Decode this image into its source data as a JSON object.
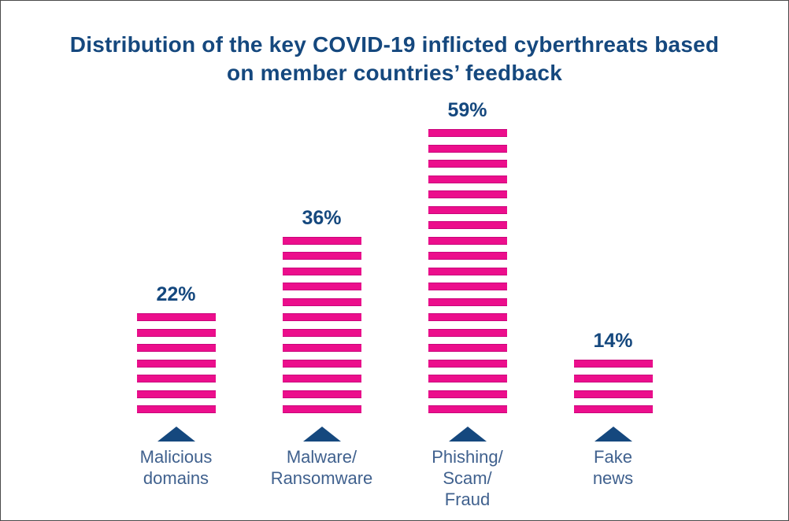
{
  "title": {
    "line1": "Distribution of the key COVID-19 inflicted cyberthreats based",
    "line2": "on member countries’ feedback"
  },
  "colors": {
    "stripe": "#EC0E8C",
    "stripe_edge": "#C9047B",
    "navy": "#15487E",
    "label_blue": "#40618E",
    "frame_border": "#4a4a4a",
    "background": "#ffffff"
  },
  "bars": [
    {
      "value_label": "22%",
      "percent": 22,
      "stripes": 7,
      "label_lines": [
        "Malicious",
        "domains"
      ]
    },
    {
      "value_label": "36%",
      "percent": 36,
      "stripes": 12,
      "label_lines": [
        "Malware/",
        "Ransomware"
      ]
    },
    {
      "value_label": "59%",
      "percent": 59,
      "stripes": 19,
      "label_lines": [
        "Phishing/",
        "Scam/",
        "Fraud"
      ]
    },
    {
      "value_label": "14%",
      "percent": 14,
      "stripes": 4,
      "label_lines": [
        "Fake",
        "news"
      ]
    }
  ],
  "chart_data": {
    "type": "bar",
    "categories": [
      "Malicious domains",
      "Malware/Ransomware",
      "Phishing/Scam/Fraud",
      "Fake news"
    ],
    "values": [
      22,
      36,
      59,
      14
    ],
    "unit": "%",
    "data_labels": [
      "22%",
      "36%",
      "59%",
      "14%"
    ],
    "title": "Distribution of the key COVID-19 inflicted cyberthreats based on member countries’ feedback",
    "xlabel": "",
    "ylabel": "",
    "ylim": [
      0,
      60
    ],
    "legend": false,
    "grid": false,
    "axes_visible": false,
    "bar_style": "horizontal-striped",
    "bar_color": "#EC0E8C",
    "pointer_color": "#15487E",
    "legend_position": "none"
  }
}
